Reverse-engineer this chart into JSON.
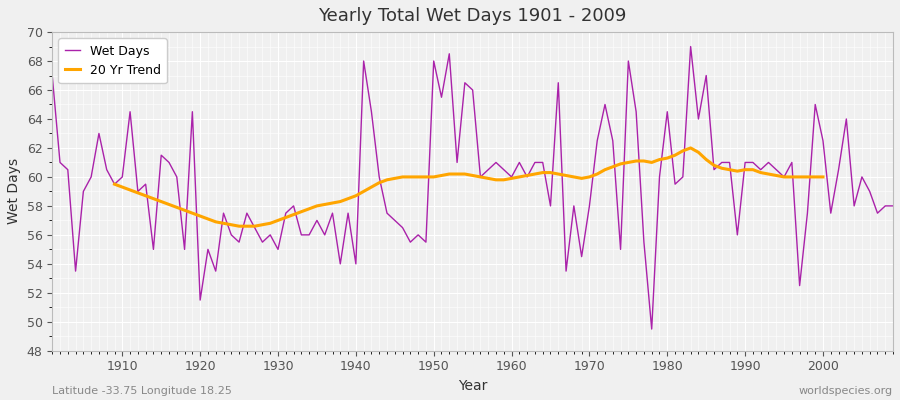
{
  "title": "Yearly Total Wet Days 1901 - 2009",
  "xlabel": "Year",
  "ylabel": "Wet Days",
  "subtitle": "Latitude -33.75 Longitude 18.25",
  "watermark": "worldspecies.org",
  "ylim": [
    48,
    70
  ],
  "xlim": [
    1901,
    2009
  ],
  "yticks": [
    48,
    50,
    52,
    54,
    56,
    58,
    60,
    62,
    64,
    66,
    68,
    70
  ],
  "xticks": [
    1910,
    1920,
    1930,
    1940,
    1950,
    1960,
    1970,
    1980,
    1990,
    2000
  ],
  "wet_days_color": "#aa22aa",
  "trend_color": "#FFA500",
  "bg_color": "#f0f0f0",
  "fig_bg_color": "#f0f0f0",
  "grid_color": "#ffffff",
  "wet_days": {
    "1901": 67,
    "1902": 61,
    "1903": 60.5,
    "1904": 53.5,
    "1905": 59,
    "1906": 60,
    "1907": 63,
    "1908": 60.5,
    "1909": 59.5,
    "1910": 60,
    "1911": 64.5,
    "1912": 59,
    "1913": 59.5,
    "1914": 55,
    "1915": 61.5,
    "1916": 61,
    "1917": 60,
    "1918": 55,
    "1919": 64.5,
    "1920": 51.5,
    "1921": 55,
    "1922": 53.5,
    "1923": 57.5,
    "1924": 56,
    "1925": 55.5,
    "1926": 57.5,
    "1927": 56.5,
    "1928": 55.5,
    "1929": 56,
    "1930": 55,
    "1931": 57.5,
    "1932": 58,
    "1933": 56,
    "1934": 56,
    "1935": 57,
    "1936": 56,
    "1937": 57.5,
    "1938": 54,
    "1939": 57.5,
    "1940": 54,
    "1941": 68,
    "1942": 64.5,
    "1943": 60,
    "1944": 57.5,
    "1945": 57,
    "1946": 56.5,
    "1947": 55.5,
    "1948": 56,
    "1949": 55.5,
    "1950": 68,
    "1951": 65.5,
    "1952": 68.5,
    "1953": 61,
    "1954": 66.5,
    "1955": 66,
    "1956": 60,
    "1957": 60.5,
    "1958": 61,
    "1959": 60.5,
    "1960": 60,
    "1961": 61,
    "1962": 60,
    "1963": 61,
    "1964": 61,
    "1965": 58,
    "1966": 66.5,
    "1967": 53.5,
    "1968": 58,
    "1969": 54.5,
    "1970": 58,
    "1971": 62.5,
    "1972": 65,
    "1973": 62.5,
    "1974": 55,
    "1975": 68,
    "1976": 64.5,
    "1977": 55.5,
    "1978": 49.5,
    "1979": 60,
    "1980": 64.5,
    "1981": 59.5,
    "1982": 60,
    "1983": 69,
    "1984": 64,
    "1985": 67,
    "1986": 60.5,
    "1987": 61,
    "1988": 61,
    "1989": 56,
    "1990": 61,
    "1991": 61,
    "1992": 60.5,
    "1993": 61,
    "1994": 60.5,
    "1995": 60,
    "1996": 61,
    "1997": 52.5,
    "1998": 57.5,
    "1999": 65,
    "2000": 62.5,
    "2001": 57.5,
    "2002": 60.5,
    "2003": 64,
    "2004": 58,
    "2005": 60,
    "2006": 59,
    "2007": 57.5,
    "2008": 58,
    "2009": 58
  },
  "trend": {
    "1909": 59.5,
    "1910": 59.3,
    "1911": 59.1,
    "1912": 58.9,
    "1913": 58.7,
    "1914": 58.5,
    "1915": 58.3,
    "1916": 58.1,
    "1917": 57.9,
    "1918": 57.7,
    "1919": 57.5,
    "1920": 57.3,
    "1921": 57.1,
    "1922": 56.9,
    "1923": 56.8,
    "1924": 56.7,
    "1925": 56.6,
    "1926": 56.6,
    "1927": 56.6,
    "1928": 56.7,
    "1929": 56.8,
    "1930": 57.0,
    "1931": 57.2,
    "1932": 57.4,
    "1933": 57.6,
    "1934": 57.8,
    "1935": 58.0,
    "1936": 58.1,
    "1937": 58.2,
    "1938": 58.3,
    "1939": 58.5,
    "1940": 58.7,
    "1941": 59.0,
    "1942": 59.3,
    "1943": 59.6,
    "1944": 59.8,
    "1945": 59.9,
    "1946": 60.0,
    "1947": 60.0,
    "1948": 60.0,
    "1949": 60.0,
    "1950": 60.0,
    "1951": 60.1,
    "1952": 60.2,
    "1953": 60.2,
    "1954": 60.2,
    "1955": 60.1,
    "1956": 60.0,
    "1957": 59.9,
    "1958": 59.8,
    "1959": 59.8,
    "1960": 59.9,
    "1961": 60.0,
    "1962": 60.1,
    "1963": 60.2,
    "1964": 60.3,
    "1965": 60.3,
    "1966": 60.2,
    "1967": 60.1,
    "1968": 60.0,
    "1969": 59.9,
    "1970": 60.0,
    "1971": 60.2,
    "1972": 60.5,
    "1973": 60.7,
    "1974": 60.9,
    "1975": 61.0,
    "1976": 61.1,
    "1977": 61.1,
    "1978": 61.0,
    "1979": 61.2,
    "1980": 61.3,
    "1981": 61.5,
    "1982": 61.8,
    "1983": 62.0,
    "1984": 61.7,
    "1985": 61.2,
    "1986": 60.8,
    "1987": 60.6,
    "1988": 60.5,
    "1989": 60.4,
    "1990": 60.5,
    "1991": 60.5,
    "1992": 60.3,
    "1993": 60.2,
    "1994": 60.1,
    "1995": 60.0,
    "1996": 60.0,
    "1997": 60.0,
    "1998": 60.0,
    "1999": 60.0,
    "2000": 60.0
  }
}
